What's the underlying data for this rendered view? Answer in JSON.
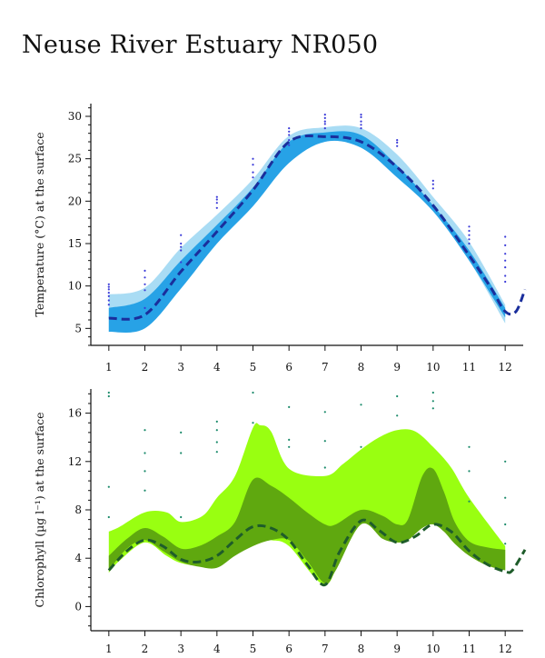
{
  "title": "Neuse River Estuary NR050",
  "colors": {
    "temp_outer": "#a9dcf4",
    "temp_inner": "#27a2e6",
    "temp_median": "#1a2e9c",
    "temp_points": "#3a3ad8",
    "chl_outer": "#99ff11",
    "chl_inner": "#5fa80f",
    "chl_median": "#1e5c2a",
    "chl_points": "#1a8a6a"
  },
  "chart_data": [
    {
      "type": "area",
      "ylabel": "Temperature (°C) at the surface",
      "xlabel": "",
      "x_ticks": [
        "1",
        "2",
        "3",
        "4",
        "5",
        "6",
        "7",
        "8",
        "9",
        "10",
        "11",
        "12"
      ],
      "y_ticks": [
        "5",
        "10",
        "15",
        "20",
        "25",
        "30"
      ],
      "xlim": [
        0.5,
        12.5
      ],
      "ylim": [
        3,
        31.5
      ],
      "outer_band": {
        "x": [
          1,
          2,
          3,
          4,
          5,
          6,
          7,
          8,
          9,
          10,
          11,
          12
        ],
        "low": [
          4.6,
          5.0,
          9.7,
          15.0,
          19.4,
          24.5,
          27.0,
          26.3,
          22.8,
          18.8,
          13.0,
          5.6
        ],
        "high": [
          9.0,
          9.8,
          14.5,
          18.4,
          22.6,
          27.7,
          28.7,
          28.6,
          25.5,
          20.5,
          15.2,
          7.8
        ]
      },
      "inner_band": {
        "x": [
          1,
          2,
          3,
          4,
          5,
          6,
          7,
          8,
          9,
          10,
          11,
          12
        ],
        "low": [
          4.6,
          5.0,
          9.7,
          15.0,
          19.4,
          24.5,
          27.0,
          26.3,
          22.8,
          18.8,
          13.0,
          6.3
        ],
        "high": [
          7.4,
          8.5,
          13.0,
          17.2,
          21.6,
          27.0,
          28.1,
          27.8,
          24.2,
          19.5,
          14.2,
          7.4
        ]
      },
      "median": {
        "x": [
          1,
          2,
          3,
          4,
          5,
          6,
          7,
          8,
          9,
          10,
          11,
          11.6,
          12,
          12.3,
          12.55
        ],
        "y": [
          6.2,
          6.6,
          11.7,
          16.4,
          21.3,
          27.0,
          27.6,
          27.0,
          24.0,
          19.5,
          13.6,
          9.8,
          7.0,
          7.0,
          9.6
        ]
      },
      "points": [
        {
          "x": 1,
          "y": [
            7.8,
            8.3,
            8.8,
            9.2,
            9.6,
            9.9,
            10.2
          ]
        },
        {
          "x": 2,
          "y": [
            7.4,
            9.5,
            10.2,
            11.0,
            11.8
          ]
        },
        {
          "x": 3,
          "y": [
            12.8,
            14.2,
            14.6,
            15.0,
            16.0
          ]
        },
        {
          "x": 4,
          "y": [
            19.2,
            19.8,
            20.2,
            20.5
          ]
        },
        {
          "x": 5,
          "y": [
            22.8,
            23.4,
            24.3,
            25.0
          ]
        },
        {
          "x": 6,
          "y": [
            26.6,
            27.2,
            27.8,
            28.2,
            28.6
          ]
        },
        {
          "x": 7,
          "y": [
            28.6,
            29.1,
            29.4,
            29.8,
            30.2
          ]
        },
        {
          "x": 8,
          "y": [
            28.6,
            29.0,
            29.4,
            29.9,
            30.2
          ]
        },
        {
          "x": 9,
          "y": [
            26.5,
            26.9,
            27.2
          ]
        },
        {
          "x": 10,
          "y": [
            21.5,
            22.0,
            22.4
          ]
        },
        {
          "x": 11,
          "y": [
            15.0,
            15.5,
            16.0,
            16.5,
            17.0
          ]
        },
        {
          "x": 12,
          "y": [
            10.5,
            11.2,
            12.2,
            13.0,
            13.8,
            14.8,
            15.8
          ]
        }
      ]
    },
    {
      "type": "area",
      "ylabel": "Chlorophyll (µg l⁻¹) at the surface",
      "xlabel": "",
      "x_ticks": [
        "1",
        "2",
        "3",
        "4",
        "5",
        "6",
        "7",
        "8",
        "9",
        "10",
        "11",
        "12"
      ],
      "y_ticks": [
        "0",
        "4",
        "8",
        "12",
        "16"
      ],
      "xlim": [
        0.5,
        12.5
      ],
      "ylim": [
        -2,
        18
      ],
      "outer_band": {
        "x": [
          1,
          1.3,
          2,
          2.6,
          3,
          3.6,
          4,
          4.5,
          5,
          5.2,
          5.5,
          6,
          7,
          7.5,
          8,
          8.5,
          9,
          9.5,
          10,
          10.5,
          11,
          12
        ],
        "low": [
          2.8,
          3.8,
          5.3,
          4.2,
          3.6,
          3.4,
          4.0,
          4.8,
          5.6,
          5.8,
          5.5,
          5.0,
          1.8,
          5.0,
          7.0,
          6.2,
          5.3,
          6.2,
          7.0,
          6.2,
          4.5,
          3.0
        ],
        "high": [
          6.2,
          6.6,
          7.8,
          7.8,
          7.0,
          7.5,
          9.0,
          10.8,
          14.8,
          15.0,
          14.5,
          11.4,
          10.8,
          11.8,
          13.0,
          14.0,
          14.6,
          14.5,
          13.2,
          11.5,
          9.0,
          5.0
        ]
      },
      "inner_band": {
        "x": [
          1,
          1.5,
          2,
          2.5,
          3,
          3.5,
          4,
          4.5,
          5,
          5.5,
          6,
          6.5,
          7,
          7.3,
          8,
          8.6,
          9,
          9.3,
          9.7,
          10,
          10.3,
          10.6,
          11,
          11.5,
          12
        ],
        "low": [
          3.0,
          4.8,
          5.5,
          4.6,
          3.7,
          3.3,
          3.2,
          4.2,
          5.0,
          5.5,
          5.5,
          3.8,
          1.9,
          3.0,
          6.8,
          5.6,
          5.3,
          5.5,
          6.5,
          6.8,
          6.2,
          5.2,
          4.2,
          3.4,
          3.0
        ],
        "high": [
          4.2,
          5.6,
          6.5,
          5.8,
          4.8,
          5.0,
          5.8,
          7.0,
          10.5,
          10.0,
          9.0,
          7.8,
          6.8,
          6.8,
          8.0,
          7.5,
          6.8,
          7.2,
          10.8,
          11.4,
          9.5,
          7.0,
          5.4,
          4.9,
          4.7
        ]
      },
      "median": {
        "x": [
          1,
          1.5,
          2,
          2.5,
          3,
          3.5,
          4,
          4.5,
          5,
          5.5,
          6,
          6.5,
          7,
          7.4,
          8,
          8.5,
          9,
          9.5,
          10,
          10.5,
          11,
          11.5,
          12,
          12.2,
          12.55
        ],
        "y": [
          3.0,
          4.6,
          5.5,
          5.0,
          3.9,
          3.7,
          4.2,
          5.5,
          6.6,
          6.5,
          5.5,
          3.5,
          1.8,
          4.5,
          7.1,
          6.3,
          5.3,
          5.8,
          6.8,
          6.2,
          4.6,
          3.5,
          2.9,
          3.0,
          4.7
        ]
      },
      "points": [
        {
          "x": 1,
          "y": [
            17.4,
            17.7,
            9.9,
            7.4
          ]
        },
        {
          "x": 2,
          "y": [
            14.6,
            12.7,
            11.2,
            9.6
          ]
        },
        {
          "x": 3,
          "y": [
            14.4,
            12.7,
            7.4
          ]
        },
        {
          "x": 4,
          "y": [
            15.3,
            14.6,
            13.6,
            12.8
          ]
        },
        {
          "x": 5,
          "y": [
            17.7,
            15.2
          ]
        },
        {
          "x": 6,
          "y": [
            16.5,
            13.8,
            13.2
          ]
        },
        {
          "x": 7,
          "y": [
            16.1,
            13.7,
            11.5
          ]
        },
        {
          "x": 8,
          "y": [
            16.7,
            13.2
          ]
        },
        {
          "x": 9,
          "y": [
            17.4,
            15.8
          ]
        },
        {
          "x": 10,
          "y": [
            17.7,
            17.0,
            16.4
          ]
        },
        {
          "x": 11,
          "y": [
            13.2,
            11.2,
            8.7
          ]
        },
        {
          "x": 12,
          "y": [
            12.0,
            9.0,
            6.8,
            5.2
          ]
        }
      ]
    }
  ]
}
